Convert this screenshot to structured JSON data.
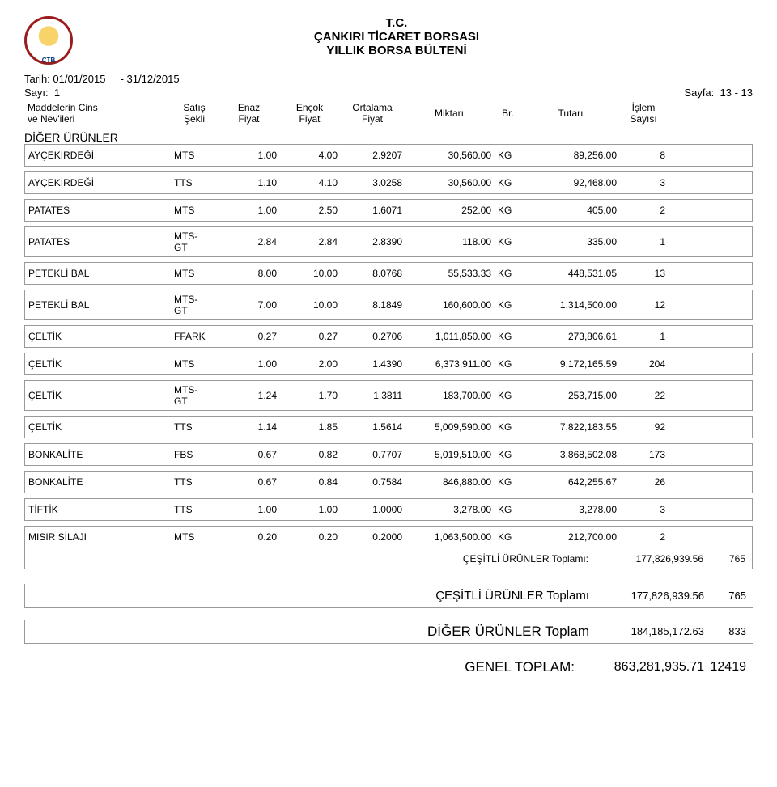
{
  "header": {
    "line1": "T.C.",
    "line2": "ÇANKIRI TİCARET BORSASI",
    "line3": "YILLIK BORSA BÜLTENİ"
  },
  "meta": {
    "tarih_label": "Tarih:",
    "tarih_from": "01/01/2015",
    "tarih_sep": "-",
    "tarih_to": "31/12/2015",
    "sayi_label": "Sayı:",
    "sayi": "1",
    "sayfa_label": "Sayfa:",
    "sayfa": "13 - 13"
  },
  "columns": {
    "name1": "Maddelerin Cins",
    "name2": "ve Nev'ileri",
    "sekli1": "Satış",
    "sekli2": "Şekli",
    "enaz1": "Enaz",
    "enaz2": "Fiyat",
    "encok1": "Ençok",
    "encok2": "Fiyat",
    "ort1": "Ortalama",
    "ort2": "Fiyat",
    "miktar": "Miktarı",
    "br": "Br.",
    "tutar": "Tutarı",
    "islem1": "İşlem",
    "islem2": "Sayısı"
  },
  "section": "DİĞER ÜRÜNLER",
  "rows": [
    {
      "name": "AYÇEKİRDEĞİ",
      "sekli": "MTS",
      "enaz": "1.00",
      "encok": "4.00",
      "ort": "2.9207",
      "mik": "30,560.00",
      "br": "KG",
      "tut": "89,256.00",
      "isl": "8",
      "tall": false
    },
    {
      "name": "AYÇEKİRDEĞİ",
      "sekli": "TTS",
      "enaz": "1.10",
      "encok": "4.10",
      "ort": "3.0258",
      "mik": "30,560.00",
      "br": "KG",
      "tut": "92,468.00",
      "isl": "3",
      "tall": false
    },
    {
      "name": "PATATES",
      "sekli": "MTS",
      "enaz": "1.00",
      "encok": "2.50",
      "ort": "1.6071",
      "mik": "252.00",
      "br": "KG",
      "tut": "405.00",
      "isl": "2",
      "tall": false
    },
    {
      "name": "PATATES",
      "sekli": "MTS-GT",
      "enaz": "2.84",
      "encok": "2.84",
      "ort": "2.8390",
      "mik": "118.00",
      "br": "KG",
      "tut": "335.00",
      "isl": "1",
      "tall": true
    },
    {
      "name": "PETEKLİ BAL",
      "sekli": "MTS",
      "enaz": "8.00",
      "encok": "10.00",
      "ort": "8.0768",
      "mik": "55,533.33",
      "br": "KG",
      "tut": "448,531.05",
      "isl": "13",
      "tall": false
    },
    {
      "name": "PETEKLİ BAL",
      "sekli": "MTS-GT",
      "enaz": "7.00",
      "encok": "10.00",
      "ort": "8.1849",
      "mik": "160,600.00",
      "br": "KG",
      "tut": "1,314,500.00",
      "isl": "12",
      "tall": true
    },
    {
      "name": "ÇELTİK",
      "sekli": "FFARK",
      "enaz": "0.27",
      "encok": "0.27",
      "ort": "0.2706",
      "mik": "1,011,850.00",
      "br": "KG",
      "tut": "273,806.61",
      "isl": "1",
      "tall": false
    },
    {
      "name": "ÇELTİK",
      "sekli": "MTS",
      "enaz": "1.00",
      "encok": "2.00",
      "ort": "1.4390",
      "mik": "6,373,911.00",
      "br": "KG",
      "tut": "9,172,165.59",
      "isl": "204",
      "tall": false
    },
    {
      "name": "ÇELTİK",
      "sekli": "MTS-GT",
      "enaz": "1.24",
      "encok": "1.70",
      "ort": "1.3811",
      "mik": "183,700.00",
      "br": "KG",
      "tut": "253,715.00",
      "isl": "22",
      "tall": true
    },
    {
      "name": "ÇELTİK",
      "sekli": "TTS",
      "enaz": "1.14",
      "encok": "1.85",
      "ort": "1.5614",
      "mik": "5,009,590.00",
      "br": "KG",
      "tut": "7,822,183.55",
      "isl": "92",
      "tall": false
    },
    {
      "name": "BONKALİTE",
      "sekli": "FBS",
      "enaz": "0.67",
      "encok": "0.82",
      "ort": "0.7707",
      "mik": "5,019,510.00",
      "br": "KG",
      "tut": "3,868,502.08",
      "isl": "173",
      "tall": false
    },
    {
      "name": "BONKALİTE",
      "sekli": "TTS",
      "enaz": "0.67",
      "encok": "0.84",
      "ort": "0.7584",
      "mik": "846,880.00",
      "br": "KG",
      "tut": "642,255.67",
      "isl": "26",
      "tall": false
    },
    {
      "name": "TİFTİK",
      "sekli": "TTS",
      "enaz": "1.00",
      "encok": "1.00",
      "ort": "1.0000",
      "mik": "3,278.00",
      "br": "KG",
      "tut": "3,278.00",
      "isl": "3",
      "tall": false
    },
    {
      "name": "MISIR SİLAJI",
      "sekli": "MTS",
      "enaz": "0.20",
      "encok": "0.20",
      "ort": "0.2000",
      "mik": "1,063,500.00",
      "br": "KG",
      "tut": "212,700.00",
      "isl": "2",
      "tall": false
    }
  ],
  "subtotal": {
    "label": "ÇEŞİTLİ ÜRÜNLER Toplamı:",
    "val": "177,826,939.56",
    "cnt": "765"
  },
  "totals": [
    {
      "label": "ÇEŞİTLİ ÜRÜNLER Toplamı",
      "val": "177,826,939.56",
      "cnt": "765",
      "cls": "mid"
    },
    {
      "label": "DİĞER ÜRÜNLER Toplam",
      "val": "184,185,172.63",
      "cnt": "833",
      "cls": "big"
    }
  ],
  "grand": {
    "label": "GENEL TOPLAM:",
    "val": "863,281,935.71",
    "cnt": "12419"
  }
}
